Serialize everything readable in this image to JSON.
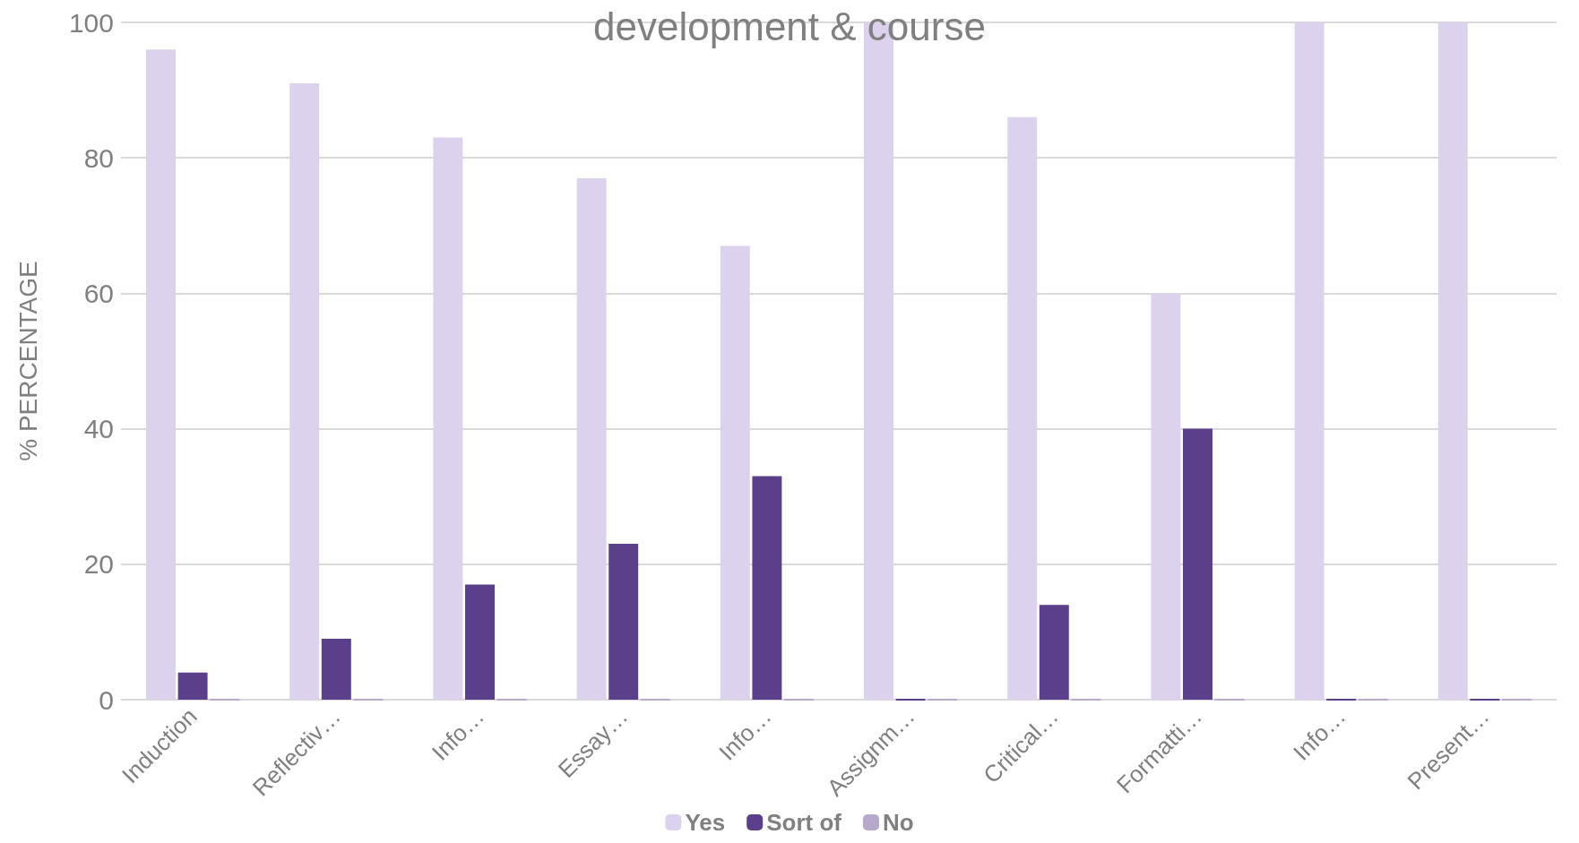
{
  "chart_data": {
    "type": "bar",
    "title": "development & course",
    "ylabel": "% PERCENTAGE",
    "categories": [
      "Induction",
      "Reflectiv…",
      "Info…",
      "Essay…",
      "Info…",
      "Assignm…",
      "Critical…",
      "Formatti…",
      "Info…",
      "Present…"
    ],
    "series": [
      {
        "name": "Yes",
        "color": "#ddd2ee",
        "values": [
          96,
          91,
          83,
          77,
          67,
          100,
          86,
          60,
          100,
          100
        ]
      },
      {
        "name": "Sort of",
        "color": "#5b3f8a",
        "values": [
          4,
          9,
          17,
          23,
          33,
          0,
          14,
          40,
          0,
          0
        ]
      },
      {
        "name": "No",
        "color": "#b7a9cc",
        "values": [
          0,
          0,
          0,
          0,
          0,
          0,
          0,
          0,
          0,
          0
        ]
      }
    ],
    "ylim": [
      0,
      100
    ],
    "yticks": [
      0,
      20,
      40,
      60,
      80,
      100
    ],
    "grid": "y",
    "legend": "bottom"
  }
}
